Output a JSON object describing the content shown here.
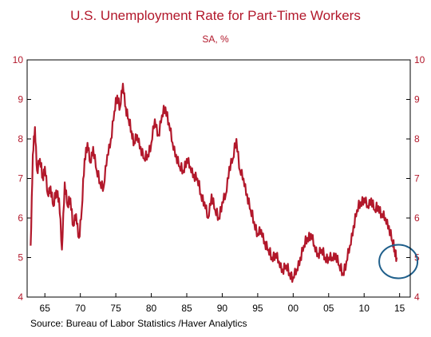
{
  "chart_data": {
    "type": "line",
    "title": "U.S. Unemployment Rate for Part-Time Workers",
    "subtitle": "SA, %",
    "source": "Source:  Bureau of Labor Statistics /Haver Analytics",
    "xlim": [
      1962.5,
      2016.5
    ],
    "ylim": [
      4,
      10
    ],
    "y_ticks": [
      4,
      5,
      6,
      7,
      8,
      9,
      10
    ],
    "x_ticks": [
      {
        "value": 1965,
        "label": "65"
      },
      {
        "value": 1970,
        "label": "70"
      },
      {
        "value": 1975,
        "label": "75"
      },
      {
        "value": 1980,
        "label": "80"
      },
      {
        "value": 1985,
        "label": "85"
      },
      {
        "value": 1990,
        "label": "90"
      },
      {
        "value": 1995,
        "label": "95"
      },
      {
        "value": 2000,
        "label": "00"
      },
      {
        "value": 2005,
        "label": "05"
      },
      {
        "value": 2010,
        "label": "10"
      },
      {
        "value": 2015,
        "label": "15"
      }
    ],
    "grid": false,
    "series": [
      {
        "color": "#b2182b",
        "x": [
          1963.0,
          1963.3,
          1963.6,
          1963.9,
          1964.3,
          1964.7,
          1965.0,
          1965.4,
          1965.8,
          1966.2,
          1966.6,
          1967.0,
          1967.4,
          1967.8,
          1968.2,
          1968.6,
          1969.0,
          1969.4,
          1969.8,
          1970.2,
          1970.6,
          1971.0,
          1971.4,
          1971.8,
          1972.3,
          1972.8,
          1973.3,
          1973.8,
          1974.3,
          1974.8,
          1975.2,
          1975.6,
          1976.0,
          1976.4,
          1976.8,
          1977.2,
          1977.6,
          1978.0,
          1978.5,
          1979.0,
          1979.5,
          1980.0,
          1980.5,
          1981.0,
          1981.5,
          1982.0,
          1982.5,
          1983.0,
          1983.5,
          1984.0,
          1984.5,
          1985.0,
          1985.5,
          1986.0,
          1986.5,
          1987.0,
          1987.5,
          1988.0,
          1988.5,
          1989.0,
          1989.5,
          1990.0,
          1990.5,
          1991.0,
          1991.5,
          1992.0,
          1992.5,
          1993.0,
          1993.5,
          1994.0,
          1994.5,
          1995.0,
          1995.5,
          1996.0,
          1996.5,
          1997.0,
          1997.5,
          1998.0,
          1998.5,
          1999.0,
          1999.5,
          2000.0,
          2000.5,
          2001.0,
          2001.5,
          2002.0,
          2002.5,
          2003.0,
          2003.5,
          2004.0,
          2004.5,
          2005.0,
          2005.5,
          2006.0,
          2006.5,
          2007.0,
          2007.5,
          2008.0,
          2008.5,
          2009.0,
          2009.5,
          2010.0,
          2010.5,
          2011.0,
          2011.5,
          2012.0,
          2012.5,
          2013.0,
          2013.5,
          2014.0,
          2014.3,
          2014.6
        ],
        "values": [
          5.3,
          7.6,
          8.3,
          7.2,
          7.5,
          7.0,
          7.3,
          6.6,
          6.8,
          6.3,
          6.7,
          6.5,
          5.2,
          6.9,
          6.3,
          6.5,
          5.8,
          6.1,
          5.5,
          6.2,
          7.5,
          7.9,
          7.4,
          7.8,
          7.2,
          6.9,
          6.8,
          7.6,
          8.0,
          8.7,
          9.1,
          8.8,
          9.4,
          8.8,
          8.5,
          8.2,
          7.9,
          8.1,
          7.8,
          7.5,
          7.6,
          7.9,
          8.5,
          8.1,
          8.6,
          8.8,
          8.4,
          7.9,
          7.6,
          7.3,
          7.2,
          7.5,
          7.3,
          7.1,
          7.0,
          6.6,
          6.4,
          6.0,
          6.6,
          6.2,
          6.0,
          6.4,
          6.6,
          7.3,
          7.5,
          8.0,
          7.2,
          7.0,
          6.6,
          6.2,
          5.9,
          5.6,
          5.7,
          5.4,
          5.2,
          5.0,
          5.1,
          4.9,
          4.7,
          4.8,
          4.6,
          4.5,
          4.7,
          5.0,
          5.3,
          5.5,
          5.6,
          5.3,
          5.1,
          5.2,
          5.0,
          5.0,
          5.0,
          5.1,
          4.8,
          4.6,
          4.9,
          5.3,
          5.8,
          6.2,
          6.4,
          6.5,
          6.3,
          6.5,
          6.2,
          6.3,
          6.1,
          6.0,
          5.8,
          5.4,
          5.2,
          5.0
        ]
      }
    ],
    "annotations": [
      {
        "type": "circle",
        "x": 2014.6,
        "y": 5.0,
        "color": "#1f5f8b"
      }
    ]
  }
}
